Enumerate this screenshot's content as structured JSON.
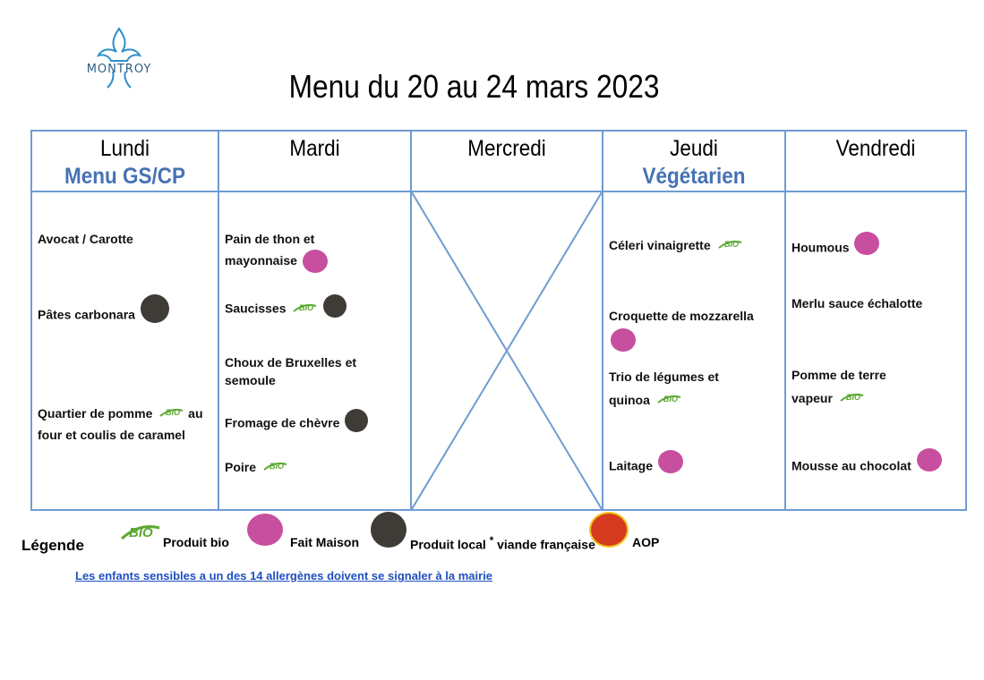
{
  "logo": {
    "text": "MONTROY",
    "color": "#2d8fc9"
  },
  "title": "Menu du 20 au 24 mars 2023",
  "days": [
    {
      "name": "Lundi",
      "subtitle": "Menu GS/CP"
    },
    {
      "name": "Mardi",
      "subtitle": ""
    },
    {
      "name": "Mercredi",
      "subtitle": ""
    },
    {
      "name": "Jeudi",
      "subtitle": "Végétarien"
    },
    {
      "name": "Vendredi",
      "subtitle": ""
    }
  ],
  "menu": {
    "lundi": {
      "d1": "Avocat / Carotte",
      "d2": "Pâtes carbonara",
      "d3a": "Quartier de pomme",
      "d3b": "au",
      "d3c": "four et coulis de caramel"
    },
    "mardi": {
      "d1a": "Pain de thon et",
      "d1b": "mayonnaise",
      "d2": "Saucisses",
      "d3a": "Choux de Bruxelles et",
      "d3b": "semoule",
      "d4": "Fromage de chèvre",
      "d5": "Poire"
    },
    "jeudi": {
      "d1": "Céleri vinaigrette",
      "d2": "Croquette de mozzarella",
      "d3a": "Trio de légumes et",
      "d3b": "quinoa",
      "d4": "Laitage"
    },
    "vendredi": {
      "d1": "Houmous",
      "d2": "Merlu sauce échalotte",
      "d3a": "Pomme de terre",
      "d3b": "vapeur",
      "d4": "Mousse au chocolat"
    }
  },
  "icons": {
    "bio": "bio-icon",
    "fait_maison": "fait-maison-icon",
    "produit_local": "produit-local-icon",
    "aop": "aop-icon",
    "bio_color": "#5aa832",
    "fait_maison_color": "#c84f9f",
    "produit_local_color": "#3f3b37",
    "aop_color": "#d63a1f"
  },
  "legend": {
    "title": "Légende",
    "bio": "Produit bio",
    "fait_maison": "Fait Maison",
    "produit_local": "Produit local",
    "star": "*",
    "viande": "viande française",
    "aop": "AOP"
  },
  "notice": "Les enfants sensibles a un des 14 allergènes doivent se signaler à la mairie",
  "colors": {
    "grid": "#6f9cd1",
    "subtitle": "#4672b4",
    "notice": "#1f4fbf"
  }
}
